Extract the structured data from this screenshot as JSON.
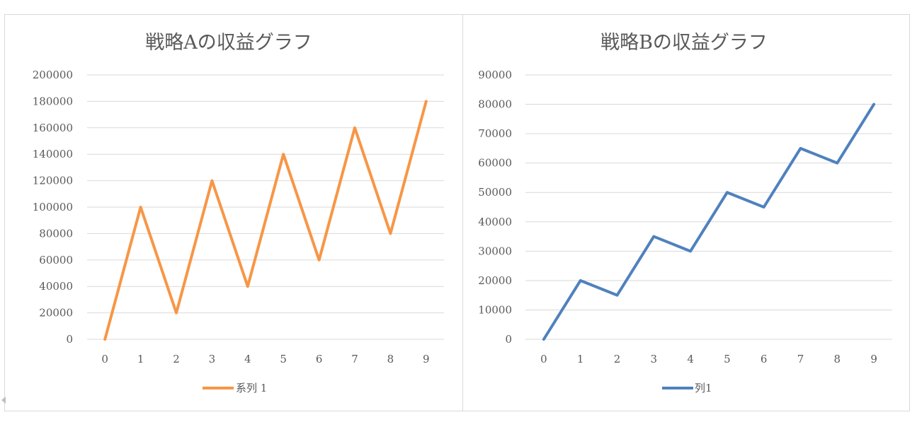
{
  "chart_data": [
    {
      "type": "line",
      "title": "戦略Aの収益グラフ",
      "x": [
        0,
        1,
        2,
        3,
        4,
        5,
        6,
        7,
        8,
        9
      ],
      "series": [
        {
          "name": "系列 1",
          "color": "#F79646",
          "values": [
            0,
            100000,
            20000,
            120000,
            40000,
            140000,
            60000,
            160000,
            80000,
            180000
          ]
        }
      ],
      "ylim": [
        0,
        200000
      ],
      "yticks": [
        0,
        20000,
        40000,
        60000,
        80000,
        100000,
        120000,
        140000,
        160000,
        180000,
        200000
      ],
      "grid": true,
      "legend": "bottom"
    },
    {
      "type": "line",
      "title": "戦略Bの収益グラフ",
      "x": [
        0,
        1,
        2,
        3,
        4,
        5,
        6,
        7,
        8,
        9
      ],
      "series": [
        {
          "name": "列1",
          "color": "#4F81BD",
          "values": [
            0,
            20000,
            15000,
            35000,
            30000,
            50000,
            45000,
            65000,
            60000,
            80000
          ]
        }
      ],
      "ylim": [
        0,
        90000
      ],
      "yticks": [
        0,
        10000,
        20000,
        30000,
        40000,
        50000,
        60000,
        70000,
        80000,
        90000
      ],
      "grid": true,
      "legend": "bottom"
    }
  ]
}
